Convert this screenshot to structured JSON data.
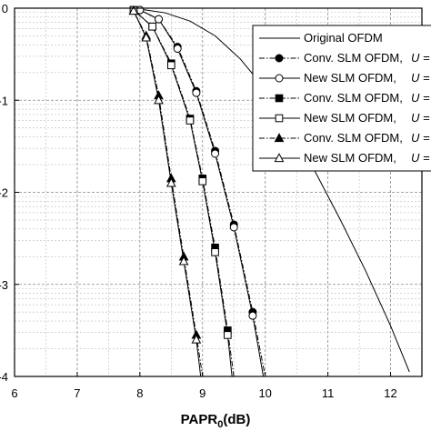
{
  "chart_data": {
    "type": "line",
    "xlabel": "PAPR",
    "xlabel_sub": "0",
    "xlabel_unit": "(dB)",
    "xlim": [
      6,
      12.5
    ],
    "ylim_log10": [
      -4,
      0
    ],
    "y_scale": "log",
    "grid": true,
    "legend_placement": "top-right",
    "x_tick_labels": [
      "6",
      "7",
      "8",
      "9",
      "10",
      "11",
      "12"
    ],
    "y_tick_labels": [
      "0",
      "-1",
      "-2",
      "-3",
      "-4"
    ],
    "series": [
      {
        "name": "Original OFDM",
        "u_suffix": "",
        "line": "solid",
        "marker": "none",
        "x": [
          8.0,
          8.4,
          8.8,
          9.2,
          9.6,
          10.0,
          10.4,
          10.8,
          11.2,
          11.6,
          12.0,
          12.3
        ],
        "log10y": [
          -0.01,
          -0.05,
          -0.14,
          -0.3,
          -0.55,
          -0.88,
          -1.3,
          -1.78,
          -2.3,
          -2.85,
          -3.45,
          -3.95
        ]
      },
      {
        "name": "Conv. SLM OFDM,",
        "u_suffix": "U =",
        "line": "dashdot",
        "marker": "filled-circle",
        "x": [
          8.0,
          8.3,
          8.6,
          8.9,
          9.2,
          9.5,
          9.8,
          10.0
        ],
        "log10y": [
          -0.02,
          -0.12,
          -0.42,
          -0.9,
          -1.55,
          -2.35,
          -3.3,
          -4.0
        ]
      },
      {
        "name": "New SLM OFDM,",
        "u_suffix": "U =",
        "line": "solid",
        "marker": "open-circle",
        "x": [
          8.0,
          8.3,
          8.6,
          8.9,
          9.2,
          9.5,
          9.8,
          9.97
        ],
        "log10y": [
          -0.02,
          -0.12,
          -0.44,
          -0.92,
          -1.58,
          -2.38,
          -3.34,
          -4.0
        ]
      },
      {
        "name": "Conv. SLM OFDM,",
        "u_suffix": "U =",
        "line": "dashdot",
        "marker": "filled-square",
        "x": [
          7.9,
          8.2,
          8.5,
          8.8,
          9.0,
          9.2,
          9.4,
          9.5
        ],
        "log10y": [
          -0.02,
          -0.2,
          -0.6,
          -1.2,
          -1.85,
          -2.6,
          -3.5,
          -4.0
        ]
      },
      {
        "name": "New SLM OFDM,",
        "u_suffix": "U =",
        "line": "solid",
        "marker": "open-square",
        "x": [
          7.9,
          8.2,
          8.5,
          8.8,
          9.0,
          9.2,
          9.4,
          9.47
        ],
        "log10y": [
          -0.02,
          -0.2,
          -0.62,
          -1.22,
          -1.88,
          -2.65,
          -3.55,
          -4.0
        ]
      },
      {
        "name": "Conv. SLM OFDM,",
        "u_suffix": "U =",
        "line": "dashdot",
        "marker": "filled-triangle",
        "x": [
          7.9,
          8.1,
          8.3,
          8.5,
          8.7,
          8.9,
          9.0
        ],
        "log10y": [
          -0.03,
          -0.3,
          -0.95,
          -1.85,
          -2.7,
          -3.55,
          -4.0
        ]
      },
      {
        "name": "New SLM OFDM,",
        "u_suffix": "U =",
        "line": "solid",
        "marker": "open-triangle",
        "x": [
          7.9,
          8.1,
          8.3,
          8.5,
          8.7,
          8.9,
          8.97
        ],
        "log10y": [
          -0.03,
          -0.32,
          -1.0,
          -1.9,
          -2.75,
          -3.6,
          -4.0
        ]
      }
    ]
  }
}
